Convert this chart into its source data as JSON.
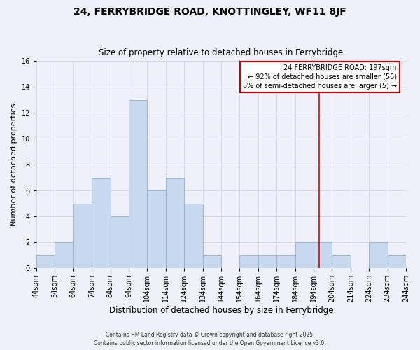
{
  "title": "24, FERRYBRIDGE ROAD, KNOTTINGLEY, WF11 8JF",
  "subtitle": "Size of property relative to detached houses in Ferrybridge",
  "xlabel": "Distribution of detached houses by size in Ferrybridge",
  "ylabel": "Number of detached properties",
  "bin_edges": [
    44,
    54,
    64,
    74,
    84,
    94,
    104,
    114,
    124,
    134,
    144,
    154,
    164,
    174,
    184,
    194,
    204,
    214,
    224,
    234,
    244
  ],
  "counts": [
    1,
    2,
    5,
    7,
    4,
    13,
    6,
    7,
    5,
    1,
    0,
    1,
    1,
    1,
    2,
    2,
    1,
    0,
    2,
    1
  ],
  "bar_color": "#c8d8ee",
  "bar_edge_color": "#90b0cc",
  "vline_x": 197,
  "vline_color": "#dd0000",
  "annotation_title": "24 FERRYBRIDGE ROAD: 197sqm",
  "annotation_line1": "← 92% of detached houses are smaller (56)",
  "annotation_line2": "8% of semi-detached houses are larger (5) →",
  "annotation_box_edge_color": "#cc0000",
  "annotation_box_face_color": "#ffffff",
  "ylim": [
    0,
    16
  ],
  "yticks": [
    0,
    2,
    4,
    6,
    8,
    10,
    12,
    14,
    16
  ],
  "background_color": "#f0f0fa",
  "grid_color": "#d8d8ec",
  "footer1": "Contains HM Land Registry data © Crown copyright and database right 2025.",
  "footer2": "Contains public sector information licensed under the Open Government Licence v3.0.",
  "title_fontsize": 10,
  "subtitle_fontsize": 8.5,
  "xlabel_fontsize": 8.5,
  "ylabel_fontsize": 8,
  "tick_fontsize": 7,
  "annot_fontsize": 7,
  "footer_fontsize": 5.5
}
